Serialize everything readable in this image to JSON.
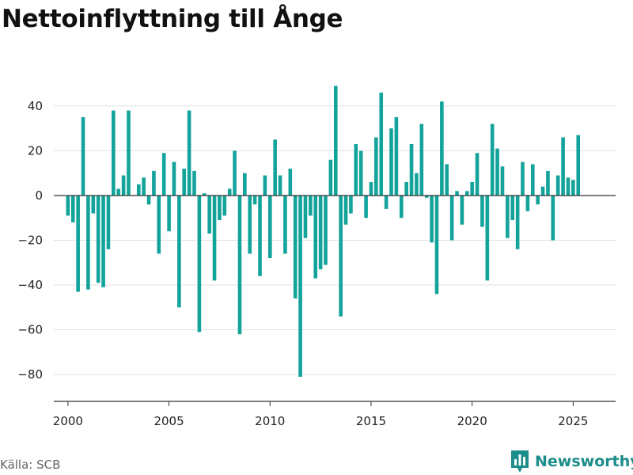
{
  "title": "Nettoinflyttning till Ånge",
  "source": "Källa: SCB",
  "brand": {
    "name": "Newsworthy",
    "icon": "bar-chart-badge-icon",
    "color": "#1b8d8a"
  },
  "chart_data": {
    "type": "bar",
    "title": "Nettoinflyttning till Ånge",
    "xlabel": "",
    "ylabel": "",
    "bar_color": "#12a39a",
    "xlim": [
      1999.3,
      2027.1
    ],
    "ylim": [
      -92,
      52
    ],
    "yticks": [
      40,
      20,
      0,
      -20,
      -40,
      -60,
      -80
    ],
    "xticks": [
      2000,
      2005,
      2010,
      2015,
      2020,
      2025
    ],
    "grid": true,
    "legend": "none",
    "series": [
      {
        "x": [
          2000.0,
          2000.25,
          2000.5,
          2000.75,
          2001.0,
          2001.25,
          2001.5,
          2001.75,
          2002.0,
          2002.25,
          2002.5,
          2002.75,
          2003.0,
          2003.25,
          2003.5,
          2003.75,
          2004.0,
          2004.25,
          2004.5,
          2004.75,
          2005.0,
          2005.25,
          2005.5,
          2005.75,
          2006.0,
          2006.25,
          2006.5,
          2006.75,
          2007.0,
          2007.25,
          2007.5,
          2007.75,
          2008.0,
          2008.25,
          2008.5,
          2008.75,
          2009.0,
          2009.25,
          2009.5,
          2009.75,
          2010.0,
          2010.25,
          2010.5,
          2010.75,
          2011.0,
          2011.25,
          2011.5,
          2011.75,
          2012.0,
          2012.25,
          2012.5,
          2012.75,
          2013.0,
          2013.25,
          2013.5,
          2013.75,
          2014.0,
          2014.25,
          2014.5,
          2014.75,
          2015.0,
          2015.25,
          2015.5,
          2015.75,
          2016.0,
          2016.25,
          2016.5,
          2016.75,
          2017.0,
          2017.25,
          2017.5,
          2017.75,
          2018.0,
          2018.25,
          2018.5,
          2018.75,
          2019.0,
          2019.25,
          2019.5,
          2019.75,
          2020.0,
          2020.25,
          2020.5,
          2020.75,
          2021.0,
          2021.25,
          2021.5,
          2021.75,
          2022.0,
          2022.25,
          2022.5,
          2022.75,
          2023.0,
          2023.25,
          2023.5,
          2023.75,
          2024.0,
          2024.25,
          2024.5,
          2024.75,
          2025.0,
          2025.25
        ],
        "values": [
          -9,
          -12,
          -43,
          35,
          -42,
          -8,
          -39,
          -41,
          -24,
          38,
          3,
          9,
          38,
          0,
          5,
          8,
          -4,
          11,
          -26,
          19,
          -16,
          15,
          -50,
          12,
          38,
          11,
          -61,
          1,
          -17,
          -38,
          -11,
          -9,
          3,
          20,
          -62,
          10,
          -26,
          -4,
          -36,
          9,
          -28,
          25,
          9,
          -26,
          12,
          -46,
          -81,
          -19,
          -9,
          -37,
          -33,
          -31,
          16,
          49,
          -54,
          -13,
          -8,
          23,
          20,
          -10,
          6,
          26,
          46,
          -6,
          30,
          35,
          -10,
          6,
          23,
          10,
          32,
          -1,
          -21,
          -44,
          42,
          14,
          -20,
          2,
          -13,
          2,
          6,
          19,
          -14,
          -38,
          32,
          21,
          13,
          -19,
          -11,
          -24,
          15,
          -7,
          14,
          -4,
          4,
          11,
          -20,
          9,
          26,
          8,
          7,
          27
        ]
      }
    ]
  }
}
